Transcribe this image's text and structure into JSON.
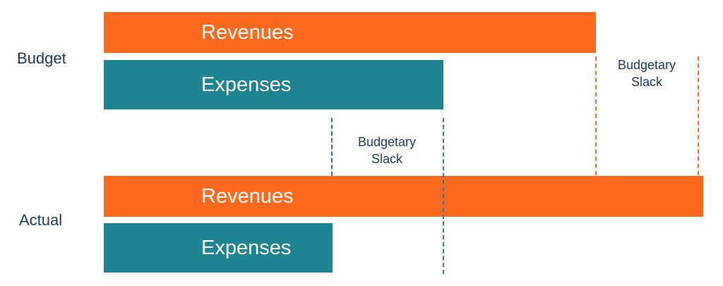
{
  "colors": {
    "revenue": "#fb6a1e",
    "expense": "#1e8492",
    "label_text": "#1f3a5f"
  },
  "rows": {
    "budget": {
      "label": "Budget",
      "revenues_label": "Revenues",
      "expenses_label": "Expenses"
    },
    "actual": {
      "label": "Actual",
      "revenues_label": "Revenues",
      "expenses_label": "Expenses"
    }
  },
  "slack": {
    "budget": {
      "line1": "Budgetary",
      "line2": "Slack"
    },
    "actual": {
      "line1": "Budgetary",
      "line2": "Slack"
    }
  }
}
